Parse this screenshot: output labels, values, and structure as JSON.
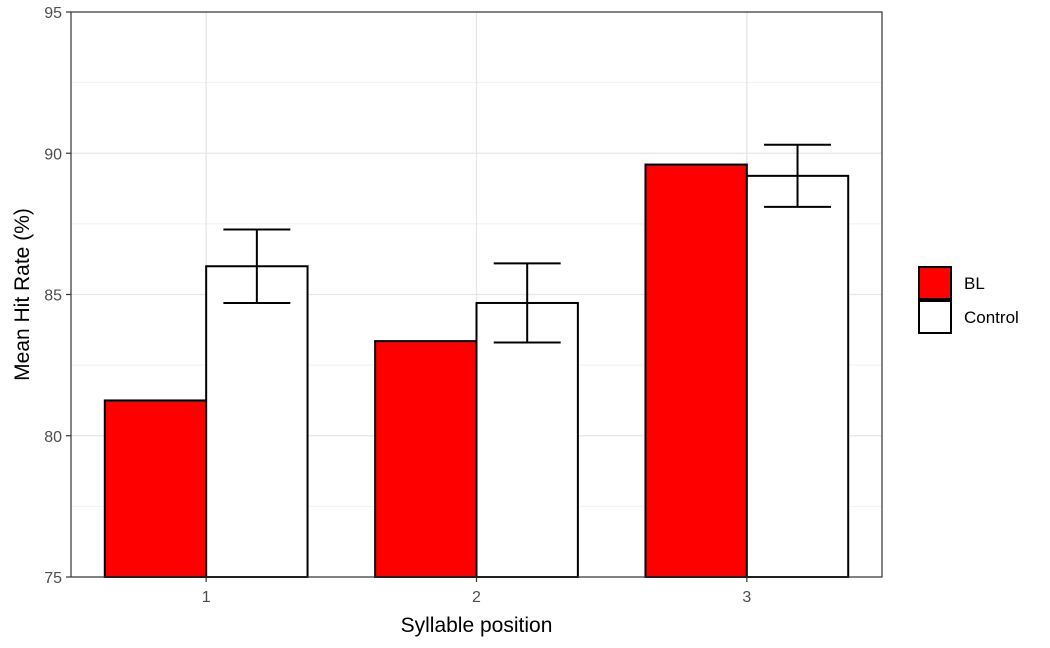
{
  "chart_data": {
    "type": "bar",
    "xlabel": "Syllable position",
    "ylabel": "Mean Hit Rate (%)",
    "ylim": [
      75,
      95
    ],
    "yticks": [
      75,
      80,
      85,
      90,
      95
    ],
    "grid": true,
    "legend_position": "right",
    "categories": [
      "1",
      "2",
      "3"
    ],
    "series": [
      {
        "name": "BL",
        "color": "#ff0000",
        "values": [
          81.25,
          83.35,
          89.6
        ]
      },
      {
        "name": "Control",
        "color": "#ffffff",
        "values": [
          86.0,
          84.7,
          89.2
        ],
        "error_low": [
          84.7,
          83.3,
          88.1
        ],
        "error_high": [
          87.3,
          86.1,
          90.3
        ]
      }
    ]
  }
}
